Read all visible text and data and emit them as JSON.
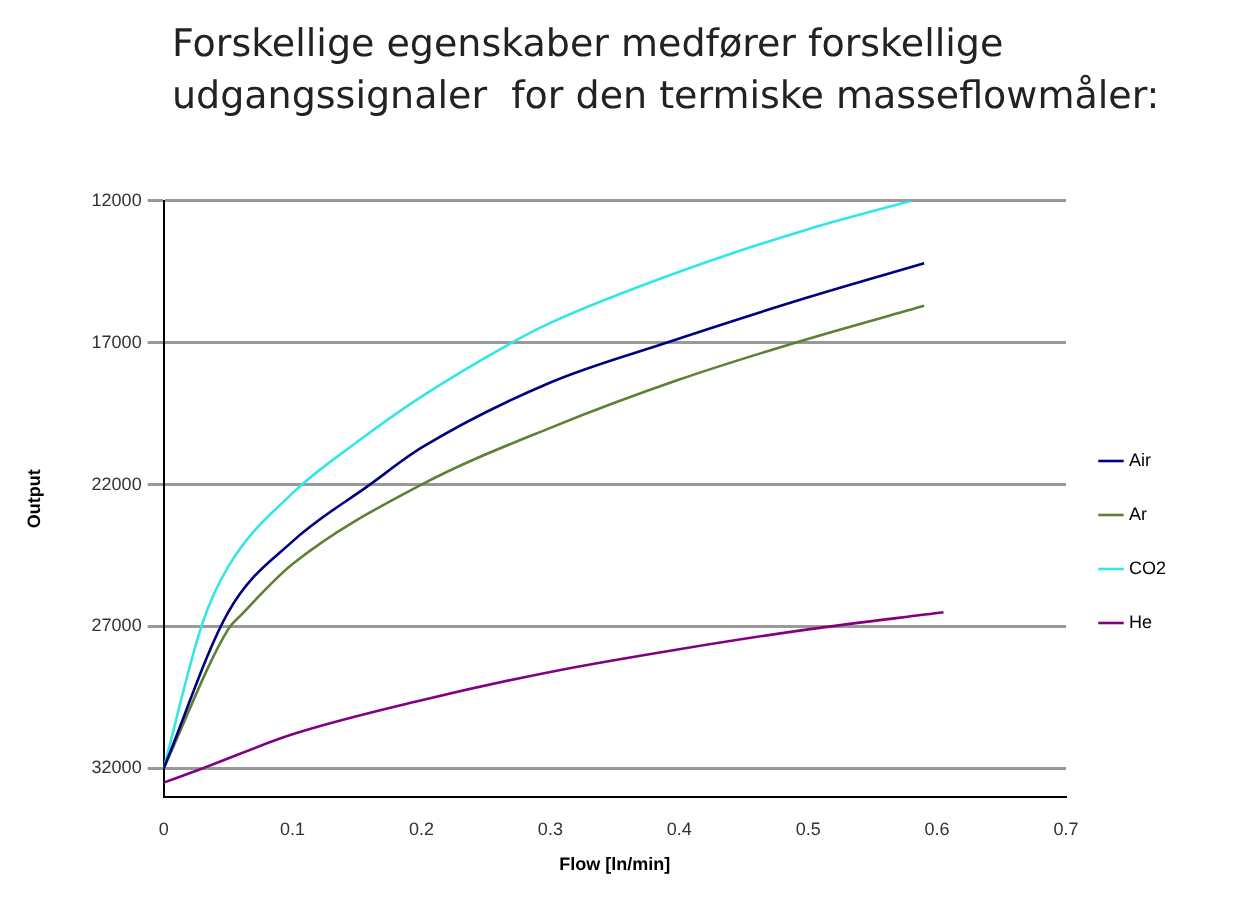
{
  "chart_data": {
    "type": "line",
    "title": "Forskellige egenskaber medfører forskellige udgangssignaler  for den termiske masseflowmåler:",
    "xlabel": "Flow [ln/min]",
    "ylabel": "Output",
    "xlim": [
      0,
      0.7
    ],
    "xticks": [
      0,
      0.1,
      0.2,
      0.3,
      0.4,
      0.5,
      0.6,
      0.7
    ],
    "ylim": [
      33000,
      12000
    ],
    "yticks": [
      12000,
      17000,
      22000,
      27000,
      32000
    ],
    "grid": "y",
    "legend": "right",
    "marker": "none",
    "line_style": "solid",
    "series": [
      {
        "name": "Air",
        "color": "#000080",
        "x": [
          0,
          0.05,
          0.1,
          0.16,
          0.2,
          0.3,
          0.39,
          0.5,
          0.59
        ],
        "values": [
          32000,
          26500,
          24000,
          22000,
          20700,
          18400,
          17000,
          15400,
          14200
        ]
      },
      {
        "name": "Ar",
        "color": "#5f7f35",
        "x": [
          0,
          0.05,
          0.06,
          0.1,
          0.2,
          0.3,
          0.4,
          0.49,
          0.59
        ],
        "values": [
          32000,
          27100,
          26600,
          24800,
          22000,
          20000,
          18300,
          17000,
          15700
        ]
      },
      {
        "name": "CO2",
        "color": "#33e6e6",
        "x": [
          0,
          0.03,
          0.05,
          0.1,
          0.15,
          0.2,
          0.27,
          0.3,
          0.4,
          0.5,
          0.58
        ],
        "values": [
          32000,
          26900,
          24900,
          22300,
          20500,
          18900,
          17000,
          16300,
          14500,
          13000,
          12000
        ]
      },
      {
        "name": "He",
        "color": "#800080",
        "x": [
          0,
          0.03,
          0.1,
          0.2,
          0.3,
          0.4,
          0.5,
          0.605
        ],
        "values": [
          32500,
          32000,
          30800,
          29600,
          28600,
          27800,
          27100,
          26500
        ]
      }
    ]
  }
}
